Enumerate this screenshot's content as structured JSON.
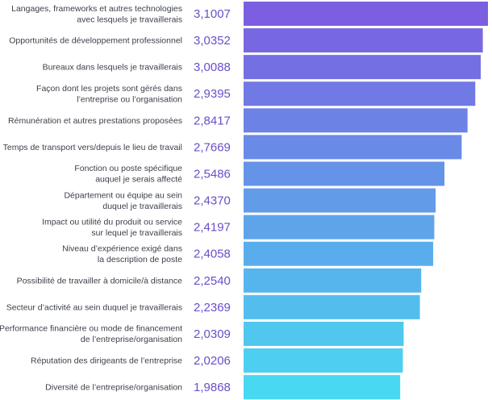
{
  "chart_data": {
    "type": "bar",
    "orientation": "horizontal",
    "categories": [
      [
        "Langages, frameworks et autres technologies",
        "avec lesquels je travaillerais"
      ],
      [
        "Opportunités de développement professionnel"
      ],
      [
        "Bureaux dans lesquels je travaillerais"
      ],
      [
        "Façon dont les projets sont gérés dans",
        "l’entreprise ou l’organisation"
      ],
      [
        "Rémunération et autres prestations proposées"
      ],
      [
        "Temps de transport vers/depuis le lieu de travail"
      ],
      [
        "Fonction ou poste spécifique",
        "auquel je serais affecté"
      ],
      [
        "Département ou équipe au sein",
        "duquel je travaillerais"
      ],
      [
        "Impact ou utilité du produit ou service",
        "sur lequel je travaillerais"
      ],
      [
        "Niveau d’expérience exigé dans",
        "la description de poste"
      ],
      [
        "Possibilité de travailler à domicile/à distance"
      ],
      [
        "Secteur d’activité au sein duquel je travaillerais"
      ],
      [
        "Performance financière ou mode de financement",
        "de l’entreprise/organisation"
      ],
      [
        "Réputation des dirigeants de l’entreprise"
      ],
      [
        "Diversité de l’entreprise/organisation"
      ]
    ],
    "values": [
      3.1007,
      3.0352,
      3.0088,
      2.9395,
      2.8417,
      2.7669,
      2.5486,
      2.437,
      2.4197,
      2.4058,
      2.254,
      2.2369,
      2.0309,
      2.0206,
      1.9868
    ],
    "value_labels": [
      "3,1007",
      "3,0352",
      "3,0088",
      "2,9395",
      "2,8417",
      "2,7669",
      "2,5486",
      "2,4370",
      "2,4197",
      "2,4058",
      "2,2540",
      "2,2369",
      "2,0309",
      "2,0206",
      "1,9868"
    ],
    "xlim": [
      0,
      3.1007
    ],
    "colors": {
      "top": "#7b5fe0",
      "bottom": "#48d8f2"
    }
  }
}
